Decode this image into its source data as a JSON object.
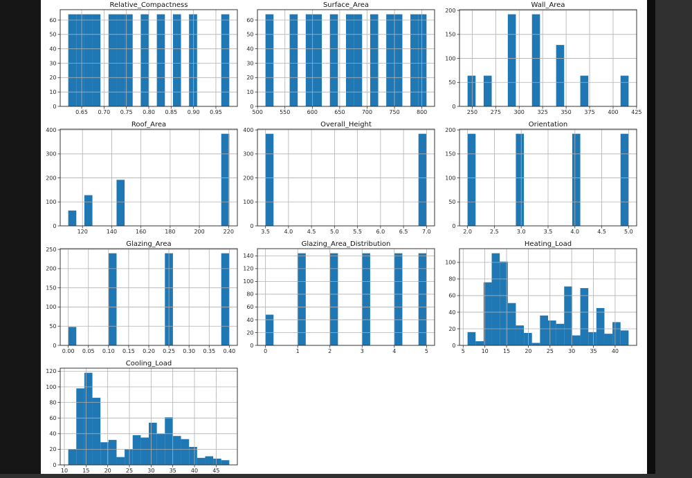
{
  "window": {
    "canvas_color": "#ffffff",
    "left_letterbox_color": "#161616",
    "right_letterbox_color": "#303030",
    "divider_color": "#0d0d0d"
  },
  "style": {
    "bar_color": "#1f77b4",
    "grid_color": "#b0b0b0",
    "spine_color": "#333333",
    "tick_text_color": "#262626",
    "title_color": "#111111"
  },
  "chart_data": [
    {
      "type": "bar",
      "variant": "histogram",
      "title": "Relative_Compactness",
      "row": 0,
      "col": 0,
      "bins": {
        "start": 0.62,
        "width": 0.018
      },
      "counts": [
        64,
        64,
        64,
        64,
        0,
        64,
        64,
        64,
        0,
        64,
        0,
        64,
        0,
        64,
        0,
        64,
        0,
        0,
        0,
        64
      ],
      "xlim": [
        0.602,
        0.998
      ],
      "ylim": [
        0,
        67.2
      ],
      "xticks": [
        0.65,
        0.7,
        0.75,
        0.8,
        0.85,
        0.9,
        0.95
      ],
      "xtick_labels": [
        "0.65",
        "0.70",
        "0.75",
        "0.80",
        "0.85",
        "0.90",
        "0.95"
      ],
      "yticks": [
        0,
        10,
        20,
        30,
        40,
        50,
        60
      ],
      "ytick_labels": [
        "0",
        "10",
        "20",
        "30",
        "40",
        "50",
        "60"
      ],
      "grid": true,
      "legend": "none"
    },
    {
      "type": "bar",
      "variant": "histogram",
      "title": "Surface_Area",
      "row": 0,
      "col": 1,
      "bins": {
        "start": 514.5,
        "width": 14.7
      },
      "counts": [
        64,
        0,
        0,
        64,
        0,
        64,
        64,
        0,
        64,
        0,
        64,
        64,
        0,
        64,
        0,
        64,
        64,
        0,
        64,
        64
      ],
      "xlim": [
        499.8,
        823.2
      ],
      "ylim": [
        0,
        67.2
      ],
      "xticks": [
        500,
        550,
        600,
        650,
        700,
        750,
        800
      ],
      "xtick_labels": [
        "500",
        "550",
        "600",
        "650",
        "700",
        "750",
        "800"
      ],
      "yticks": [
        0,
        10,
        20,
        30,
        40,
        50,
        60
      ],
      "ytick_labels": [
        "0",
        "10",
        "20",
        "30",
        "40",
        "50",
        "60"
      ],
      "grid": true,
      "legend": "none"
    },
    {
      "type": "bar",
      "variant": "histogram",
      "title": "Wall_Area",
      "row": 0,
      "col": 2,
      "bins": {
        "start": 245.0,
        "width": 8.575
      },
      "counts": [
        64,
        0,
        64,
        0,
        0,
        192,
        0,
        0,
        192,
        0,
        0,
        128,
        0,
        0,
        64,
        0,
        0,
        0,
        0,
        64
      ],
      "xlim": [
        236.425,
        425.075
      ],
      "ylim": [
        0,
        201.6
      ],
      "xticks": [
        250,
        275,
        300,
        325,
        350,
        375,
        400,
        425
      ],
      "xtick_labels": [
        "250",
        "275",
        "300",
        "325",
        "350",
        "375",
        "400",
        "425"
      ],
      "yticks": [
        0,
        50,
        100,
        150,
        200
      ],
      "ytick_labels": [
        "0",
        "50",
        "100",
        "150",
        "200"
      ],
      "grid": true,
      "legend": "none"
    },
    {
      "type": "bar",
      "variant": "histogram",
      "title": "Roof_Area",
      "row": 1,
      "col": 0,
      "bins": {
        "start": 110.25,
        "width": 5.5125
      },
      "counts": [
        64,
        0,
        128,
        0,
        0,
        0,
        192,
        0,
        0,
        0,
        0,
        0,
        0,
        0,
        0,
        0,
        0,
        0,
        0,
        384
      ],
      "xlim": [
        104.7375,
        226.0125
      ],
      "ylim": [
        0,
        403.2
      ],
      "xticks": [
        120,
        140,
        160,
        180,
        200,
        220
      ],
      "xtick_labels": [
        "120",
        "140",
        "160",
        "180",
        "200",
        "220"
      ],
      "yticks": [
        0,
        100,
        200,
        300,
        400
      ],
      "ytick_labels": [
        "0",
        "100",
        "200",
        "300",
        "400"
      ],
      "grid": true,
      "legend": "none"
    },
    {
      "type": "bar",
      "variant": "histogram",
      "title": "Overall_Height",
      "row": 1,
      "col": 1,
      "bins": {
        "start": 3.5,
        "width": 0.175
      },
      "counts": [
        384,
        0,
        0,
        0,
        0,
        0,
        0,
        0,
        0,
        0,
        0,
        0,
        0,
        0,
        0,
        0,
        0,
        0,
        0,
        384
      ],
      "xlim": [
        3.325,
        7.175
      ],
      "ylim": [
        0,
        403.2
      ],
      "xticks": [
        3.5,
        4.0,
        4.5,
        5.0,
        5.5,
        6.0,
        6.5,
        7.0
      ],
      "xtick_labels": [
        "3.5",
        "4.0",
        "4.5",
        "5.0",
        "5.5",
        "6.0",
        "6.5",
        "7.0"
      ],
      "yticks": [
        0,
        100,
        200,
        300,
        400
      ],
      "ytick_labels": [
        "0",
        "100",
        "200",
        "300",
        "400"
      ],
      "grid": true,
      "legend": "none"
    },
    {
      "type": "bar",
      "variant": "histogram",
      "title": "Orientation",
      "row": 1,
      "col": 2,
      "bins": {
        "start": 2.0,
        "width": 0.15
      },
      "counts": [
        192,
        0,
        0,
        0,
        0,
        0,
        192,
        0,
        0,
        0,
        0,
        0,
        0,
        192,
        0,
        0,
        0,
        0,
        0,
        192
      ],
      "xlim": [
        1.85,
        5.15
      ],
      "ylim": [
        0,
        201.6
      ],
      "xticks": [
        2.0,
        2.5,
        3.0,
        3.5,
        4.0,
        4.5,
        5.0
      ],
      "xtick_labels": [
        "2.0",
        "2.5",
        "3.0",
        "3.5",
        "4.0",
        "4.5",
        "5.0"
      ],
      "yticks": [
        0,
        50,
        100,
        150,
        200
      ],
      "ytick_labels": [
        "0",
        "50",
        "100",
        "150",
        "200"
      ],
      "grid": true,
      "legend": "none"
    },
    {
      "type": "bar",
      "variant": "histogram",
      "title": "Glazing_Area",
      "row": 2,
      "col": 0,
      "bins": {
        "start": 0.0,
        "width": 0.02
      },
      "counts": [
        48,
        0,
        0,
        0,
        0,
        240,
        0,
        0,
        0,
        0,
        0,
        0,
        240,
        0,
        0,
        0,
        0,
        0,
        0,
        240
      ],
      "xlim": [
        -0.02,
        0.42
      ],
      "ylim": [
        0,
        252
      ],
      "xticks": [
        0.0,
        0.05,
        0.1,
        0.15,
        0.2,
        0.25,
        0.3,
        0.35,
        0.4
      ],
      "xtick_labels": [
        "0.00",
        "0.05",
        "0.10",
        "0.15",
        "0.20",
        "0.25",
        "0.30",
        "0.35",
        "0.40"
      ],
      "yticks": [
        0,
        50,
        100,
        150,
        200,
        250
      ],
      "ytick_labels": [
        "0",
        "50",
        "100",
        "150",
        "200",
        "250"
      ],
      "grid": true,
      "legend": "none"
    },
    {
      "type": "bar",
      "variant": "histogram",
      "title": "Glazing_Area_Distribution",
      "row": 2,
      "col": 1,
      "bins": {
        "start": 0.0,
        "width": 0.25
      },
      "counts": [
        48,
        0,
        0,
        0,
        144,
        0,
        0,
        0,
        144,
        0,
        0,
        0,
        144,
        0,
        0,
        0,
        144,
        0,
        0,
        144
      ],
      "xlim": [
        -0.25,
        5.25
      ],
      "ylim": [
        0,
        151.2
      ],
      "xticks": [
        0,
        1,
        2,
        3,
        4,
        5
      ],
      "xtick_labels": [
        "0",
        "1",
        "2",
        "3",
        "4",
        "5"
      ],
      "yticks": [
        0,
        20,
        40,
        60,
        80,
        100,
        120,
        140
      ],
      "ytick_labels": [
        "0",
        "20",
        "40",
        "60",
        "80",
        "100",
        "120",
        "140"
      ],
      "grid": true,
      "legend": "none"
    },
    {
      "type": "bar",
      "variant": "histogram",
      "title": "Heating_Load",
      "row": 2,
      "col": 2,
      "bins": {
        "start": 6.01,
        "width": 1.8545
      },
      "counts": [
        16,
        5,
        76,
        111,
        101,
        51,
        24,
        15,
        3,
        36,
        30,
        26,
        71,
        12,
        69,
        16,
        45,
        14,
        28,
        18
      ],
      "xlim": [
        4.1555,
        44.9545
      ],
      "ylim": [
        0,
        116.55
      ],
      "xticks": [
        5,
        10,
        15,
        20,
        25,
        30,
        35,
        40
      ],
      "xtick_labels": [
        "5",
        "10",
        "15",
        "20",
        "25",
        "30",
        "35",
        "40"
      ],
      "yticks": [
        0,
        20,
        40,
        60,
        80,
        100
      ],
      "ytick_labels": [
        "0",
        "20",
        "40",
        "60",
        "80",
        "100"
      ],
      "grid": true,
      "legend": "none"
    },
    {
      "type": "bar",
      "variant": "histogram",
      "title": "Cooling_Load",
      "row": 3,
      "col": 0,
      "bins": {
        "start": 10.9,
        "width": 1.8565
      },
      "counts": [
        20,
        98,
        118,
        86,
        29,
        32,
        10,
        20,
        38,
        35,
        54,
        40,
        61,
        37,
        33,
        23,
        9,
        11,
        8,
        6
      ],
      "xlim": [
        9.0435,
        49.8865
      ],
      "ylim": [
        0,
        123.9
      ],
      "xticks": [
        10,
        15,
        20,
        25,
        30,
        35,
        40,
        45
      ],
      "xtick_labels": [
        "10",
        "15",
        "20",
        "25",
        "30",
        "35",
        "40",
        "45"
      ],
      "yticks": [
        0,
        20,
        40,
        60,
        80,
        100,
        120
      ],
      "ytick_labels": [
        "0",
        "20",
        "40",
        "60",
        "80",
        "100",
        "120"
      ],
      "grid": true,
      "legend": "none"
    }
  ]
}
